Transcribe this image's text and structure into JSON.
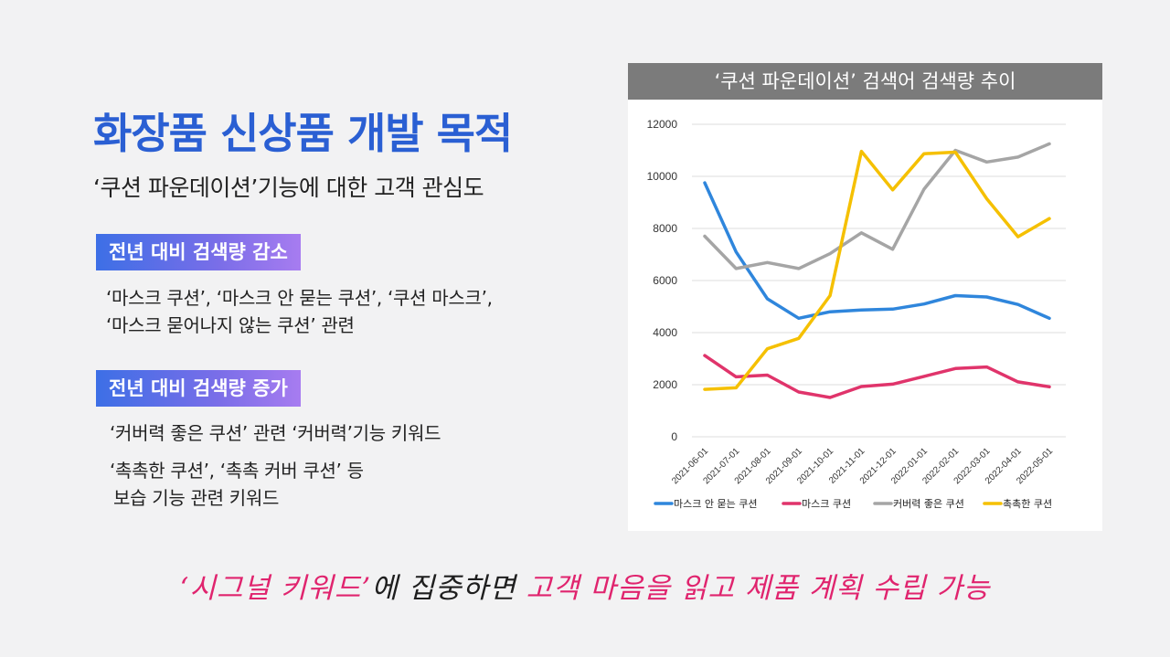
{
  "slide": {
    "title": "화장품 신상품 개발 목적",
    "subtitle": "‘쿠션 파운데이션’기능에 대한 고객 관심도",
    "decrease": {
      "badge": "전년 대비 검색량 감소",
      "line1": "‘마스크 쿠션’, ‘마스크 안 묻는 쿠션’, ‘쿠션 마스크’,",
      "line2": "‘마스크 묻어나지 않는 쿠션’ 관련"
    },
    "increase": {
      "badge": "전년 대비 검색량 증가",
      "line1": "‘커버력 좋은 쿠션’ 관련 ‘커버력’기능 키워드",
      "line2": "‘촉촉한 쿠션’, ‘촉촉 커버 쿠션’ 등",
      "line3": "보습 기능 관련 키워드"
    },
    "footer": {
      "part1": "‘시그널 키워드’",
      "part2": "에 집중하면",
      "part3": "고객 마음을 읽고 제품 계획 수립 가능"
    }
  },
  "colors": {
    "title": "#2a5fd3",
    "accent_pink": "#e0246e",
    "chart_header_bg": "#7b7b7b"
  },
  "chart_data": {
    "type": "line",
    "title": "‘쿠션 파운데이션’ 검색어 검색량 추이",
    "xlabel": "",
    "ylabel": "",
    "ylim": [
      0,
      12000
    ],
    "yticks": [
      "0",
      "2000",
      "4000",
      "6000",
      "8000",
      "10000",
      "12000"
    ],
    "grid": true,
    "legend_position": "bottom",
    "categories": [
      "2021-06-01",
      "2021-07-01",
      "2021-08-01",
      "2021-09-01",
      "2021-10-01",
      "2021-11-01",
      "2021-12-01",
      "2022-01-01",
      "2022-02-01",
      "2022-03-01",
      "2022-04-01",
      "2022-05-01"
    ],
    "series": [
      {
        "name": "마스크 안 묻는 쿠션",
        "color": "#2f86dc",
        "values": [
          9750,
          7100,
          5300,
          4550,
          4800,
          4870,
          4900,
          5100,
          5420,
          5370,
          5080,
          4550
        ]
      },
      {
        "name": "마스크 쿠션",
        "color": "#e0346b",
        "values": [
          3120,
          2300,
          2370,
          1720,
          1510,
          1930,
          2020,
          2320,
          2620,
          2680,
          2110,
          1920
        ]
      },
      {
        "name": "커버력 좋은 쿠션",
        "color": "#a5a5a5",
        "values": [
          7700,
          6460,
          6690,
          6460,
          7030,
          7830,
          7200,
          9510,
          11000,
          10550,
          10740,
          11250
        ]
      },
      {
        "name": "촉촉한 쿠션",
        "color": "#f5c000",
        "values": [
          1820,
          1880,
          3380,
          3780,
          5420,
          10960,
          9480,
          10870,
          10930,
          9140,
          7680,
          8380
        ]
      }
    ]
  }
}
